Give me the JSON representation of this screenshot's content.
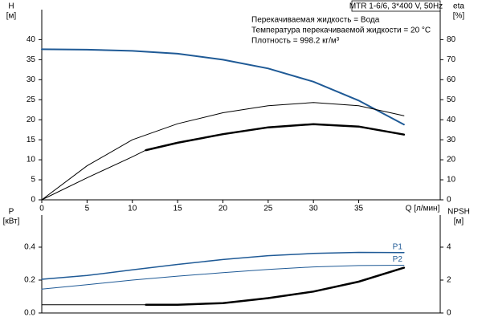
{
  "header": {
    "model": "MTR 1-6/6, 3*400 V, 50Hz",
    "lines": [
      "Перекачиваемая жидкость = Вода",
      "Температура перекачиваемой жидкости = 20 °C",
      "Плотность = 998.2 кг/м³"
    ]
  },
  "chart_data": [
    {
      "type": "line",
      "xlabel": "Q [л/мин]",
      "ylabel": [
        "H",
        "[м]"
      ],
      "y2label": [
        "eta",
        "[%]"
      ],
      "xlim": [
        0,
        44
      ],
      "xticks": [
        0,
        5,
        10,
        15,
        20,
        25,
        30,
        35
      ],
      "ylim": [
        0,
        47.5
      ],
      "yticks": [
        0,
        5,
        10,
        15,
        20,
        25,
        30,
        35,
        40
      ],
      "y2lim": [
        0,
        95
      ],
      "y2ticks": [
        0,
        10,
        20,
        30,
        40,
        50,
        60,
        70,
        80
      ],
      "show_xtick_labels": true,
      "series": [
        {
          "color": "#1f5a96",
          "width": 2,
          "x": [
            0,
            5,
            10,
            15,
            20,
            25,
            30,
            35,
            40
          ],
          "values": [
            37.6,
            37.5,
            37.2,
            36.5,
            35,
            32.8,
            29.5,
            24.8,
            18.8
          ]
        },
        {
          "color": "#000000",
          "width": 1,
          "axis": "y2",
          "x": [
            0,
            5,
            10,
            15,
            20,
            25,
            30,
            35,
            40
          ],
          "values": [
            0,
            17,
            30,
            38,
            43.5,
            47,
            48.6,
            47,
            42
          ]
        },
        {
          "color": "#000000",
          "width": 1,
          "axis": "y2",
          "x": [
            0,
            5,
            10,
            11.5
          ],
          "values": [
            0,
            11,
            21.5,
            24.8
          ]
        },
        {
          "color": "#000000",
          "width": 2.5,
          "axis": "y2",
          "x": [
            11.5,
            15,
            20,
            25,
            30,
            35,
            40
          ],
          "values": [
            24.8,
            28.5,
            32.8,
            36.2,
            37.8,
            36.6,
            32.6
          ]
        }
      ]
    },
    {
      "type": "line",
      "ylabel": [
        "P",
        "[кВт]"
      ],
      "y2label": [
        "NPSH",
        "[м]"
      ],
      "xlim": [
        0,
        44
      ],
      "ylim": [
        0,
        0.595
      ],
      "yticks": [
        {
          "value": 0,
          "label": "0.0"
        },
        0.2,
        0.4
      ],
      "y2lim": [
        0,
        5.95
      ],
      "y2ticks": [
        0,
        2,
        4
      ],
      "show_xtick_labels": false,
      "series": [
        {
          "name": "P1",
          "color": "#1f5a96",
          "width": 1.5,
          "x": [
            0,
            5,
            10,
            15,
            20,
            25,
            30,
            35,
            40
          ],
          "values": [
            0.205,
            0.228,
            0.262,
            0.295,
            0.325,
            0.348,
            0.362,
            0.368,
            0.367
          ]
        },
        {
          "name": "P2",
          "color": "#1f5a96",
          "width": 1,
          "x": [
            0,
            5,
            10,
            15,
            20,
            25,
            30,
            35,
            40
          ],
          "values": [
            0.145,
            0.172,
            0.2,
            0.224,
            0.245,
            0.265,
            0.28,
            0.288,
            0.29
          ]
        },
        {
          "color": "#000000",
          "width": 1,
          "axis": "y2",
          "x": [
            0,
            11.5
          ],
          "values": [
            0.5,
            0.5
          ]
        },
        {
          "color": "#000000",
          "width": 2.5,
          "axis": "y2",
          "x": [
            11.5,
            15,
            20,
            25,
            30,
            35,
            40
          ],
          "values": [
            0.5,
            0.5,
            0.6,
            0.9,
            1.3,
            1.9,
            2.75
          ]
        }
      ]
    }
  ]
}
